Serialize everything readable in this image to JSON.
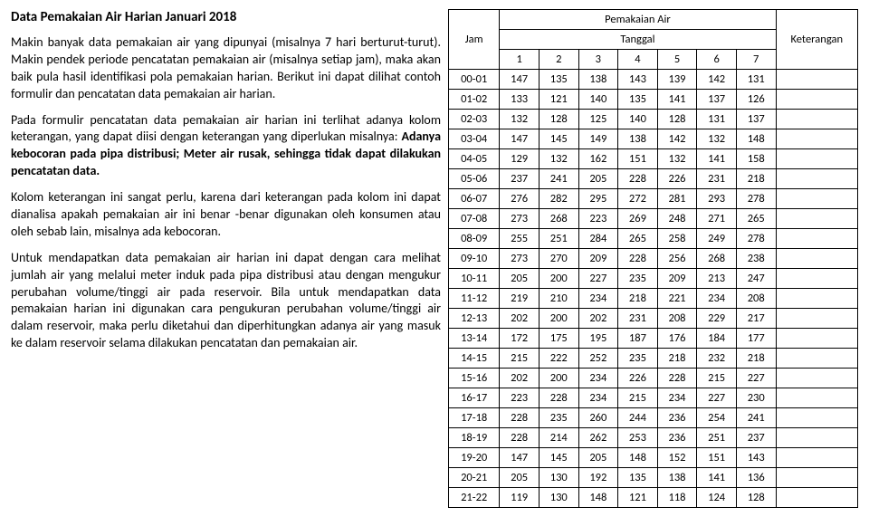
{
  "title": "Data Pemakaian Air Harian Januari 2018",
  "p1a": "Makin banyak data pemakaian air yang dipunyai (misalnya 7 hari berturut-turut). Makin pendek periode pencatatan pemakaian air (misalnya setiap jam), maka akan baik pula hasil identifikasi pola pemakaian harian. Berikut ini dapat dilihat contoh formulir dan pencatatan data pemakaian air harian.",
  "p2a": "Pada formulir pencatatan data pemakaian air harian ini terlihat adanya kolom keterangan, yang dapat diisi dengan keterangan yang diperlukan misalnya: ",
  "p2b": "Adanya kebocoran pada pipa distribusi; Meter air rusak, sehingga tidak dapat dilakukan pencatatan data.",
  "p3": "Kolom keterangan ini sangat perlu, karena dari keterangan pada kolom ini dapat dianalisa apakah pemakaian air ini benar -benar digunakan oleh konsumen atau oleh sebab lain, misalnya ada kebocoran.",
  "p4": "Untuk mendapatkan data pemakaian air harian ini dapat dengan cara melihat jumlah air yang melalui meter induk pada pipa distribusi atau dengan mengukur perubahan volume/tinggi air pada reservoir. Bila untuk mendapatkan data pemakaian harian ini digunakan cara pengukuran perubahan volume/tinggi air dalam reservoir, maka perlu diketahui dan diperhitungkan adanya air yang masuk ke dalam reservoir selama dilakukan pencatatan dan pemakaian air.",
  "table": {
    "head": {
      "jam": "Jam",
      "pemakaian": "Pemakaian Air",
      "tanggal": "Tanggal",
      "ket": "Keterangan"
    },
    "days": [
      "1",
      "2",
      "3",
      "4",
      "5",
      "6",
      "7"
    ],
    "rows": [
      {
        "jam": "00-01",
        "v": [
          "147",
          "135",
          "138",
          "143",
          "139",
          "142",
          "131"
        ]
      },
      {
        "jam": "01-02",
        "v": [
          "133",
          "121",
          "140",
          "135",
          "141",
          "137",
          "126"
        ]
      },
      {
        "jam": "02-03",
        "v": [
          "132",
          "128",
          "125",
          "140",
          "128",
          "131",
          "137"
        ]
      },
      {
        "jam": "03-04",
        "v": [
          "147",
          "145",
          "149",
          "138",
          "142",
          "132",
          "148"
        ]
      },
      {
        "jam": "04-05",
        "v": [
          "129",
          "132",
          "162",
          "151",
          "132",
          "141",
          "158"
        ]
      },
      {
        "jam": "05-06",
        "v": [
          "237",
          "241",
          "205",
          "228",
          "226",
          "231",
          "218"
        ]
      },
      {
        "jam": "06-07",
        "v": [
          "276",
          "282",
          "295",
          "272",
          "281",
          "293",
          "278"
        ]
      },
      {
        "jam": "07-08",
        "v": [
          "273",
          "268",
          "223",
          "269",
          "248",
          "271",
          "265"
        ]
      },
      {
        "jam": "08-09",
        "v": [
          "255",
          "251",
          "284",
          "265",
          "258",
          "249",
          "278"
        ]
      },
      {
        "jam": "09-10",
        "v": [
          "273",
          "270",
          "209",
          "228",
          "256",
          "268",
          "238"
        ]
      },
      {
        "jam": "10-11",
        "v": [
          "205",
          "200",
          "227",
          "235",
          "209",
          "213",
          "247"
        ]
      },
      {
        "jam": "11-12",
        "v": [
          "219",
          "210",
          "234",
          "218",
          "221",
          "234",
          "208"
        ]
      },
      {
        "jam": "12-13",
        "v": [
          "202",
          "200",
          "202",
          "231",
          "208",
          "229",
          "217"
        ]
      },
      {
        "jam": "13-14",
        "v": [
          "172",
          "175",
          "195",
          "187",
          "176",
          "184",
          "177"
        ]
      },
      {
        "jam": "14-15",
        "v": [
          "215",
          "222",
          "252",
          "235",
          "218",
          "232",
          "218"
        ]
      },
      {
        "jam": "15-16",
        "v": [
          "202",
          "200",
          "234",
          "226",
          "228",
          "215",
          "227"
        ]
      },
      {
        "jam": "16-17",
        "v": [
          "223",
          "228",
          "234",
          "215",
          "234",
          "227",
          "230"
        ]
      },
      {
        "jam": "17-18",
        "v": [
          "228",
          "235",
          "260",
          "244",
          "236",
          "254",
          "241"
        ]
      },
      {
        "jam": "18-19",
        "v": [
          "228",
          "214",
          "262",
          "253",
          "236",
          "251",
          "237"
        ]
      },
      {
        "jam": "19-20",
        "v": [
          "147",
          "145",
          "205",
          "148",
          "152",
          "151",
          "143"
        ]
      },
      {
        "jam": "20-21",
        "v": [
          "205",
          "130",
          "192",
          "135",
          "138",
          "141",
          "136"
        ]
      },
      {
        "jam": "21-22",
        "v": [
          "119",
          "130",
          "148",
          "121",
          "118",
          "124",
          "128"
        ]
      }
    ]
  }
}
